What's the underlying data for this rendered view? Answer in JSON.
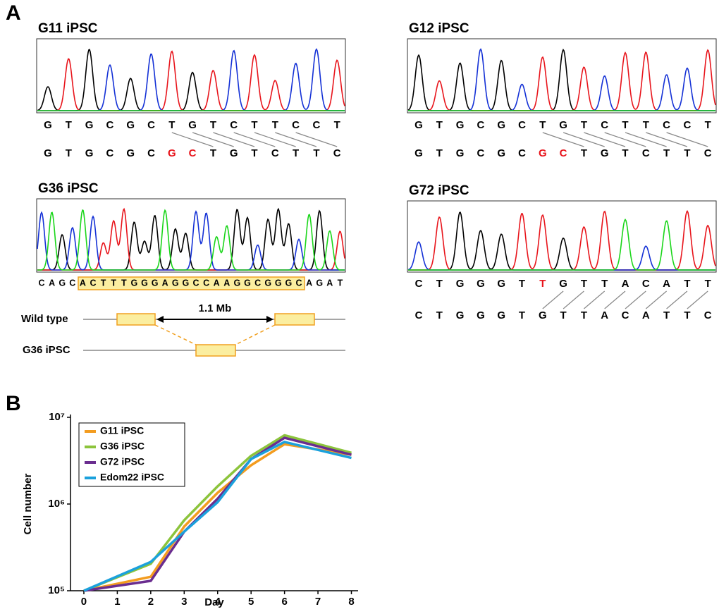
{
  "panel_a": {
    "label": "A",
    "plots": [
      {
        "title": "G11 iPSC",
        "reference": [
          "G",
          "T",
          "G",
          "C",
          "G",
          "C",
          "T",
          "G",
          "T",
          "C",
          "T",
          "T",
          "C",
          "C",
          "T"
        ],
        "edited": [
          "G",
          "T",
          "G",
          "C",
          "G",
          "C",
          "G",
          "C",
          "T",
          "G",
          "T",
          "C",
          "T",
          "T",
          "C"
        ]
      },
      {
        "title": "G12 iPSC",
        "reference": [
          "G",
          "T",
          "G",
          "C",
          "G",
          "C",
          "T",
          "G",
          "T",
          "C",
          "T",
          "T",
          "C",
          "C",
          "T"
        ],
        "edited": [
          "G",
          "T",
          "G",
          "C",
          "G",
          "C",
          "G",
          "C",
          "T",
          "G",
          "T",
          "C",
          "T",
          "T",
          "C"
        ]
      },
      {
        "title": "G36 iPSC",
        "sequence": [
          "C",
          "A",
          "G",
          "C",
          "A",
          "C",
          "T",
          "T",
          "T",
          "G",
          "G",
          "G",
          "A",
          "G",
          "G",
          "C",
          "C",
          "A",
          "A",
          "G",
          "G",
          "C",
          "G",
          "G",
          "G",
          "C",
          "A",
          "G",
          "A",
          "T"
        ]
      },
      {
        "title": "G72 iPSC",
        "reference": [
          "C",
          "T",
          "G",
          "G",
          "G",
          "T",
          "T",
          "G",
          "T",
          "T",
          "A",
          "C",
          "A",
          "T",
          "T"
        ],
        "edited": [
          "C",
          "T",
          "G",
          "G",
          "G",
          "T",
          "G",
          "T",
          "T",
          "A",
          "C",
          "A",
          "T",
          "T",
          "C"
        ]
      }
    ],
    "deletion_diagram": {
      "wild_type_label": "Wild type",
      "distance_label": "1.1 Mb",
      "mutant_label": "G36 iPSC"
    }
  },
  "panel_b_label": "B",
  "chart_data": {
    "type": "line",
    "xlabel": "Day",
    "ylabel": "Cell number",
    "x": [
      0,
      2,
      3,
      4,
      5,
      6,
      8
    ],
    "series": [
      {
        "name": "G11 iPSC",
        "color": "#f39c1f",
        "values": [
          100000,
          145000,
          550000,
          1350000,
          2800000,
          4900000,
          3700000
        ]
      },
      {
        "name": "G36 iPSC",
        "color": "#8cc43c",
        "values": [
          100000,
          205000,
          650000,
          1600000,
          3600000,
          6200000,
          3900000
        ]
      },
      {
        "name": "G72 iPSC",
        "color": "#6a2d8f",
        "values": [
          100000,
          130000,
          480000,
          1150000,
          3300000,
          5800000,
          3700000
        ]
      },
      {
        "name": "Edom22 iPSC",
        "color": "#1ba1dc",
        "values": [
          100000,
          215000,
          480000,
          1050000,
          3300000,
          5200000,
          3400000
        ]
      }
    ],
    "xlim": [
      -0.4,
      8.2
    ],
    "xticks": [
      0,
      1,
      2,
      3,
      4,
      5,
      6,
      7,
      8
    ],
    "ylim": [
      100000,
      10000000
    ],
    "log_scale": true,
    "yticks": [
      {
        "value": 100000,
        "label": "10⁵"
      },
      {
        "value": 1000000,
        "label": "10⁶"
      },
      {
        "value": 10000000,
        "label": "10⁷"
      }
    ],
    "legend": "upper left"
  }
}
